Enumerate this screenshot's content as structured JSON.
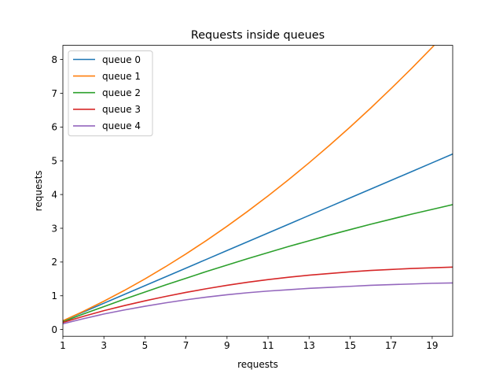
{
  "chart_data": {
    "type": "line",
    "title": "Requests inside queues",
    "xlabel": "requests",
    "ylabel": "requests",
    "xlim": [
      1,
      20
    ],
    "ylim": [
      -0.2,
      8.42
    ],
    "x_ticks": [
      1,
      3,
      5,
      7,
      9,
      11,
      13,
      15,
      17,
      19
    ],
    "y_ticks": [
      0,
      1,
      2,
      3,
      4,
      5,
      6,
      7,
      8
    ],
    "grid": false,
    "legend_position": "top-left",
    "x": [
      1,
      2,
      3,
      4,
      5,
      6,
      7,
      8,
      9,
      10,
      11,
      12,
      13,
      14,
      15,
      16,
      17,
      18,
      19,
      20
    ],
    "series": [
      {
        "name": "queue 0",
        "color": "#1f77b4",
        "values": [
          0.26,
          0.52,
          0.78,
          1.04,
          1.3,
          1.56,
          1.82,
          2.08,
          2.34,
          2.6,
          2.86,
          3.12,
          3.38,
          3.64,
          3.9,
          4.16,
          4.42,
          4.68,
          4.94,
          5.2
        ]
      },
      {
        "name": "queue 1",
        "color": "#ff7f0e",
        "values": [
          0.26,
          0.54,
          0.84,
          1.16,
          1.5,
          1.86,
          2.24,
          2.64,
          3.06,
          3.5,
          3.96,
          4.44,
          4.94,
          5.46,
          6.0,
          6.56,
          7.14,
          7.74,
          8.36,
          9.0
        ]
      },
      {
        "name": "queue 2",
        "color": "#2ca02c",
        "values": [
          0.23,
          0.46,
          0.68,
          0.9,
          1.11,
          1.32,
          1.52,
          1.72,
          1.91,
          2.1,
          2.28,
          2.46,
          2.63,
          2.8,
          2.96,
          3.12,
          3.27,
          3.42,
          3.56,
          3.7
        ]
      },
      {
        "name": "queue 3",
        "color": "#d62728",
        "values": [
          0.21,
          0.39,
          0.56,
          0.71,
          0.85,
          0.98,
          1.1,
          1.21,
          1.31,
          1.4,
          1.48,
          1.55,
          1.61,
          1.66,
          1.71,
          1.75,
          1.78,
          1.81,
          1.83,
          1.85
        ]
      },
      {
        "name": "queue 4",
        "color": "#9467bd",
        "values": [
          0.17,
          0.32,
          0.46,
          0.58,
          0.69,
          0.79,
          0.88,
          0.96,
          1.03,
          1.09,
          1.14,
          1.18,
          1.22,
          1.25,
          1.28,
          1.31,
          1.33,
          1.35,
          1.37,
          1.38
        ]
      }
    ]
  }
}
